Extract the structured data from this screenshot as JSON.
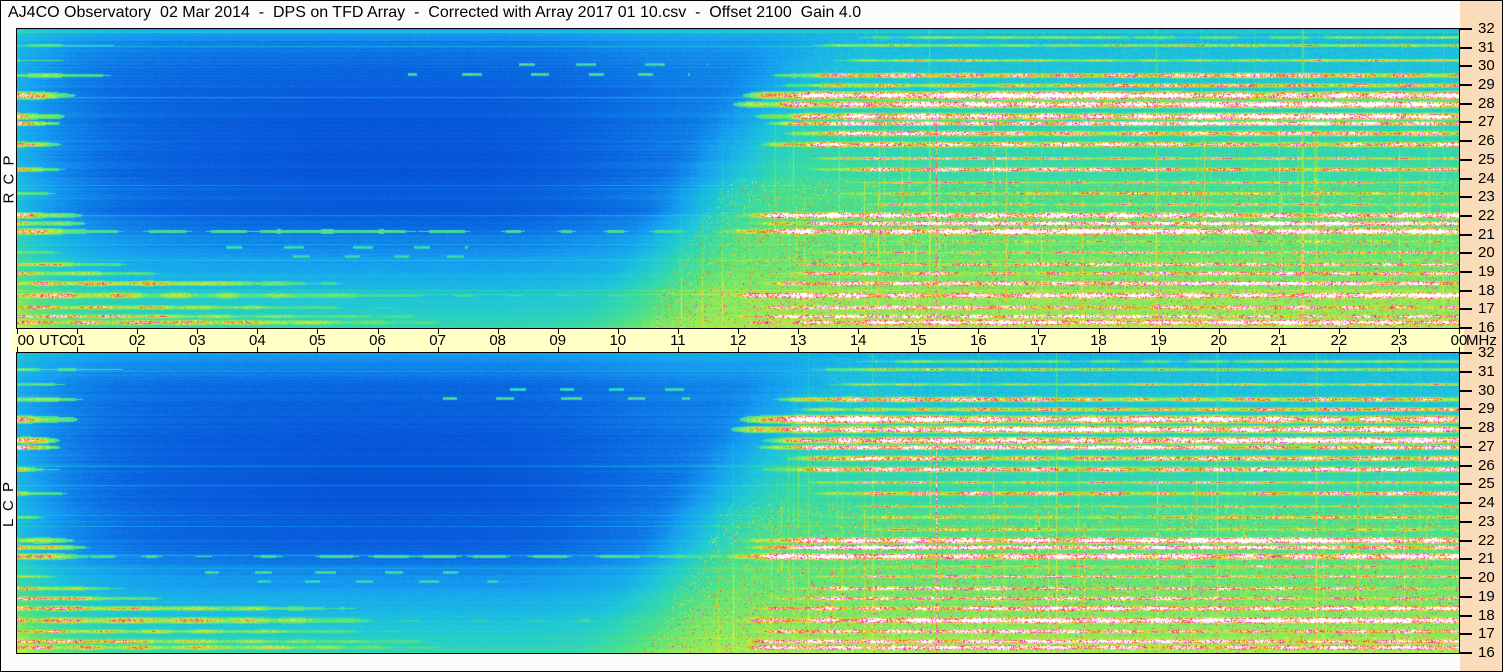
{
  "window": {
    "title": "AJ4CO Observatory  02 Mar 2014  -  DPS on TFD Array  -  Corrected with Array 2017 01 10.csv  -  Offset 2100  Gain 4.0"
  },
  "colors": {
    "page_bg": "#fcfcfc",
    "right_margin_bg": "#fbdcba",
    "time_strip_bg": "#ffffc6",
    "border": "#000000",
    "text": "#000000"
  },
  "axes": {
    "time": {
      "name": "UTC",
      "tick_labels": [
        "00",
        "01",
        "02",
        "03",
        "04",
        "05",
        "06",
        "07",
        "08",
        "09",
        "10",
        "11",
        "12",
        "13",
        "14",
        "15",
        "16",
        "17",
        "18",
        "19",
        "20",
        "21",
        "22",
        "23",
        "00"
      ]
    },
    "frequency": {
      "unit": "MHz",
      "tick_labels": [
        "32",
        "31",
        "30",
        "29",
        "28",
        "27",
        "26",
        "25",
        "24",
        "23",
        "22",
        "21",
        "20",
        "19",
        "18",
        "17",
        "16"
      ]
    }
  },
  "panels": [
    {
      "label": "R C P",
      "seed": 1401
    },
    {
      "label": "L C P",
      "seed": 2502
    }
  ],
  "chart_data": {
    "type": "heatmap",
    "title": "AJ4CO Observatory 02 Mar 2014 - DPS on TFD Array dynamic spectrum, dual polarization",
    "x": {
      "label": "UTC",
      "range_hours": [
        0,
        24
      ],
      "tick_step_hours": 1
    },
    "y": {
      "label": "MHz",
      "range_mhz": [
        16,
        32
      ],
      "tick_step_mhz": 1
    },
    "series": [
      {
        "name": "RCP"
      },
      {
        "name": "LCP"
      }
    ],
    "colormap_stops": [
      [
        0.0,
        "#0030B0"
      ],
      [
        0.1,
        "#0448D0"
      ],
      [
        0.18,
        "#0A64E0"
      ],
      [
        0.27,
        "#17A0F2"
      ],
      [
        0.36,
        "#1EC6DC"
      ],
      [
        0.45,
        "#36D9AC"
      ],
      [
        0.53,
        "#55E380"
      ],
      [
        0.62,
        "#9BEC52"
      ],
      [
        0.7,
        "#DFF23E"
      ],
      [
        0.78,
        "#FFAE28"
      ],
      [
        0.85,
        "#FF5414"
      ],
      [
        0.9,
        "#FA10E6"
      ],
      [
        0.95,
        "#FF78F6"
      ],
      [
        1.0,
        "#FFFFFF"
      ]
    ],
    "background": {
      "quiet_level": 0.175,
      "day_level_top": 0.32,
      "day_level_bottom": 0.62,
      "day_onset_utc": 13.3,
      "onset_freq_slope_hours": 2.8,
      "dawn_fade_utc": 0.9,
      "prenoon_brighten_from_utc": 8.0
    },
    "rfi_bands": [
      {
        "mhz": 31.55,
        "width_mhz": 0.1,
        "day": [
          14.2,
          0.22
        ]
      },
      {
        "mhz": 31.15,
        "width_mhz": 0.12,
        "night": [
          2.5,
          0.22
        ],
        "day": [
          13.6,
          0.35
        ]
      },
      {
        "mhz": 30.35,
        "width_mhz": 0.15,
        "night": [
          1.5,
          0.2
        ],
        "day": [
          13.8,
          0.3
        ]
      },
      {
        "mhz": 29.55,
        "width_mhz": 0.22,
        "night": [
          2.0,
          0.3
        ],
        "day": [
          13.0,
          0.55
        ]
      },
      {
        "mhz": 29.0,
        "width_mhz": 0.18,
        "day": [
          13.2,
          0.5
        ]
      },
      {
        "mhz": 28.45,
        "width_mhz": 0.34,
        "night": [
          1.2,
          0.5
        ],
        "day": [
          12.6,
          1.0
        ]
      },
      {
        "mhz": 27.95,
        "width_mhz": 0.3,
        "day": [
          12.4,
          0.95
        ]
      },
      {
        "mhz": 27.35,
        "width_mhz": 0.3,
        "night": [
          0.9,
          0.95
        ],
        "day": [
          12.8,
          0.9
        ]
      },
      {
        "mhz": 26.95,
        "width_mhz": 0.2,
        "night": [
          0.8,
          0.8
        ],
        "day": [
          12.9,
          0.85
        ]
      },
      {
        "mhz": 26.4,
        "width_mhz": 0.24,
        "day": [
          13.3,
          0.7
        ]
      },
      {
        "mhz": 25.8,
        "width_mhz": 0.24,
        "night": [
          1.0,
          0.4
        ],
        "day": [
          12.9,
          0.75
        ]
      },
      {
        "mhz": 25.1,
        "width_mhz": 0.14,
        "day": [
          13.5,
          0.45
        ]
      },
      {
        "mhz": 24.5,
        "width_mhz": 0.2,
        "night": [
          1.1,
          0.35
        ],
        "day": [
          13.6,
          0.6
        ]
      },
      {
        "mhz": 23.8,
        "width_mhz": 0.12,
        "day": [
          14.0,
          0.35
        ]
      },
      {
        "mhz": 23.2,
        "width_mhz": 0.15,
        "night": [
          0.8,
          0.3
        ],
        "day": [
          13.8,
          0.45
        ]
      },
      {
        "mhz": 22.6,
        "width_mhz": 0.15,
        "day": [
          14.2,
          0.4
        ]
      },
      {
        "mhz": 22.0,
        "width_mhz": 0.28,
        "night": [
          1.3,
          0.5
        ],
        "day": [
          12.5,
          0.95
        ]
      },
      {
        "mhz": 21.6,
        "width_mhz": 0.24,
        "night": [
          1.5,
          0.5
        ],
        "day": [
          12.6,
          0.9
        ]
      },
      {
        "mhz": 21.15,
        "width_mhz": 0.3,
        "night": [
          1.5,
          0.6
        ],
        "quiet": 0.08,
        "day": [
          12.3,
          1.0
        ]
      },
      {
        "mhz": 20.6,
        "width_mhz": 0.12,
        "day": [
          13.9,
          0.35
        ]
      },
      {
        "mhz": 20.05,
        "width_mhz": 0.15,
        "night": [
          1.0,
          0.3
        ],
        "day": [
          13.4,
          0.5
        ]
      },
      {
        "mhz": 19.4,
        "width_mhz": 0.2,
        "night": [
          2.2,
          0.45
        ],
        "day": [
          13.0,
          0.6
        ]
      },
      {
        "mhz": 18.9,
        "width_mhz": 0.2,
        "night": [
          3.0,
          0.5
        ],
        "day": [
          12.9,
          0.65
        ]
      },
      {
        "mhz": 18.35,
        "width_mhz": 0.24,
        "night": [
          6.5,
          0.55
        ],
        "day": [
          12.5,
          0.8
        ]
      },
      {
        "mhz": 17.7,
        "width_mhz": 0.3,
        "night": [
          7.5,
          0.6
        ],
        "quiet": 0.06,
        "day": [
          12.2,
          0.95
        ]
      },
      {
        "mhz": 17.1,
        "width_mhz": 0.2,
        "night": [
          8.0,
          0.5
        ],
        "day": [
          12.4,
          0.7
        ]
      },
      {
        "mhz": 16.6,
        "width_mhz": 0.2,
        "night": [
          8.5,
          0.55
        ],
        "day": [
          12.3,
          0.8
        ]
      },
      {
        "mhz": 16.25,
        "width_mhz": 0.26,
        "night": [
          9.0,
          0.6
        ],
        "day": [
          12.2,
          0.85
        ]
      }
    ],
    "sporadic_dashes": [
      {
        "mhz": 29.6,
        "utc": [
          6.5,
          11.2
        ],
        "strength": 0.33
      },
      {
        "mhz": 30.1,
        "utc": [
          8.0,
          11.5
        ],
        "strength": 0.3
      },
      {
        "mhz": 20.3,
        "utc": [
          3.0,
          7.5
        ],
        "strength": 0.3
      },
      {
        "mhz": 19.8,
        "utc": [
          4.0,
          8.0
        ],
        "strength": 0.28
      }
    ],
    "vertical_lines": [
      {
        "utc": 15.3,
        "strength": 0.55,
        "from_freq_frac": 0.3
      },
      {
        "utc": 16.25,
        "strength": 0.35,
        "from_freq_frac": 0.28
      },
      {
        "utc": 14.1,
        "strength": 0.28,
        "from_freq_frac": 0.5
      }
    ],
    "hairline_count": 48
  }
}
